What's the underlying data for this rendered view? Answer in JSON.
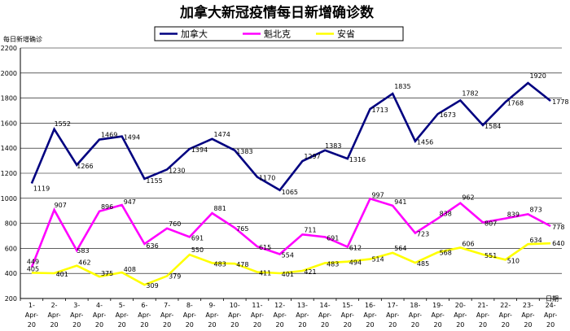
{
  "chart_data": {
    "type": "line",
    "title": "加拿大新冠疫情每日新增确诊数",
    "ylabel": "每日新增确诊",
    "xlabel": "日期",
    "ylim": [
      200,
      2200
    ],
    "yticks": [
      200,
      400,
      600,
      800,
      1000,
      1200,
      1400,
      1600,
      1800,
      2000,
      2200
    ],
    "grid": "horizontal",
    "legend": "top-center",
    "categories": [
      "1-Apr-20",
      "2-Apr-20",
      "3-Apr-20",
      "4-Apr-20",
      "5-Apr-20",
      "6-Apr-20",
      "7-Apr-20",
      "8-Apr-20",
      "9-Apr-20",
      "10-Apr-20",
      "11-Apr-20",
      "12-Apr-20",
      "13-Apr-20",
      "14-Apr-20",
      "15-Apr-20",
      "16-Apr-20",
      "17-Apr-20",
      "18-Apr-20",
      "19-Apr-20",
      "20-Apr-20",
      "21-Apr-20",
      "22-Apr-20",
      "23-Apr-20",
      "24-Apr-20"
    ],
    "series": [
      {
        "name": "加拿大",
        "color": "#000080",
        "values": [
          1119,
          1552,
          1266,
          1469,
          1494,
          1155,
          1230,
          1394,
          1474,
          1383,
          1170,
          1065,
          1297,
          1383,
          1316,
          1713,
          1835,
          1456,
          1673,
          1782,
          1584,
          1768,
          1920,
          1778
        ]
      },
      {
        "name": "魁北克",
        "color": "#ff00ff",
        "values": [
          449,
          907,
          583,
          896,
          947,
          636,
          760,
          691,
          881,
          765,
          615,
          554,
          711,
          691,
          612,
          997,
          941,
          723,
          838,
          962,
          807,
          839,
          873,
          778
        ]
      },
      {
        "name": "安省",
        "color": "#ffff00",
        "values": [
          405,
          401,
          462,
          375,
          408,
          309,
          379,
          550,
          483,
          478,
          411,
          401,
          421,
          483,
          494,
          514,
          564,
          485,
          568,
          606,
          551,
          510,
          634,
          640
        ]
      }
    ]
  }
}
